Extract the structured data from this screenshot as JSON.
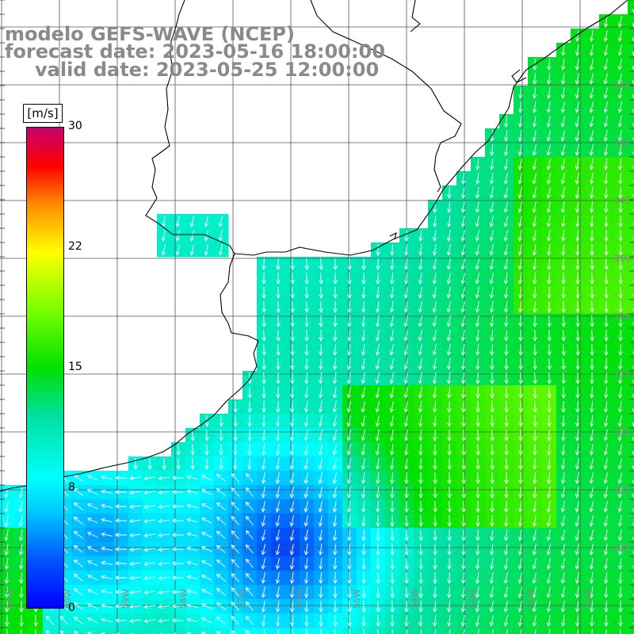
{
  "title": {
    "model": "modelo GEFS-WAVE (NCEP)",
    "forecast": "forecast date: 2023-05-16 18:00:00",
    "valid": "valid date: 2023-05-25 12:00:00"
  },
  "colorbar": {
    "unit": "[m/s]",
    "ticks": [
      "30",
      "22",
      "15",
      "8",
      "0"
    ],
    "range": [
      0,
      30
    ],
    "colors": [
      "#0000ff",
      "#00c8ff",
      "#00ffff",
      "#00e000",
      "#ffff00",
      "#ff8c00",
      "#ff0000",
      "#c8006e"
    ]
  },
  "grid": {
    "lat_labels": [
      "32S",
      "33S",
      "34S",
      "35S",
      "36S",
      "37S",
      "38S",
      "39S",
      "40S"
    ],
    "lon_labels": [
      "61W",
      "60W",
      "59W",
      "58W",
      "57W",
      "56W",
      "55W",
      "54W",
      "53W",
      "52W",
      "51W"
    ]
  },
  "map": {
    "variable": "wind speed and direction",
    "land_color": "#ffffff",
    "coastline_color": "#000000",
    "arrow_color": "#ffffff",
    "grid_color": "#555555"
  }
}
